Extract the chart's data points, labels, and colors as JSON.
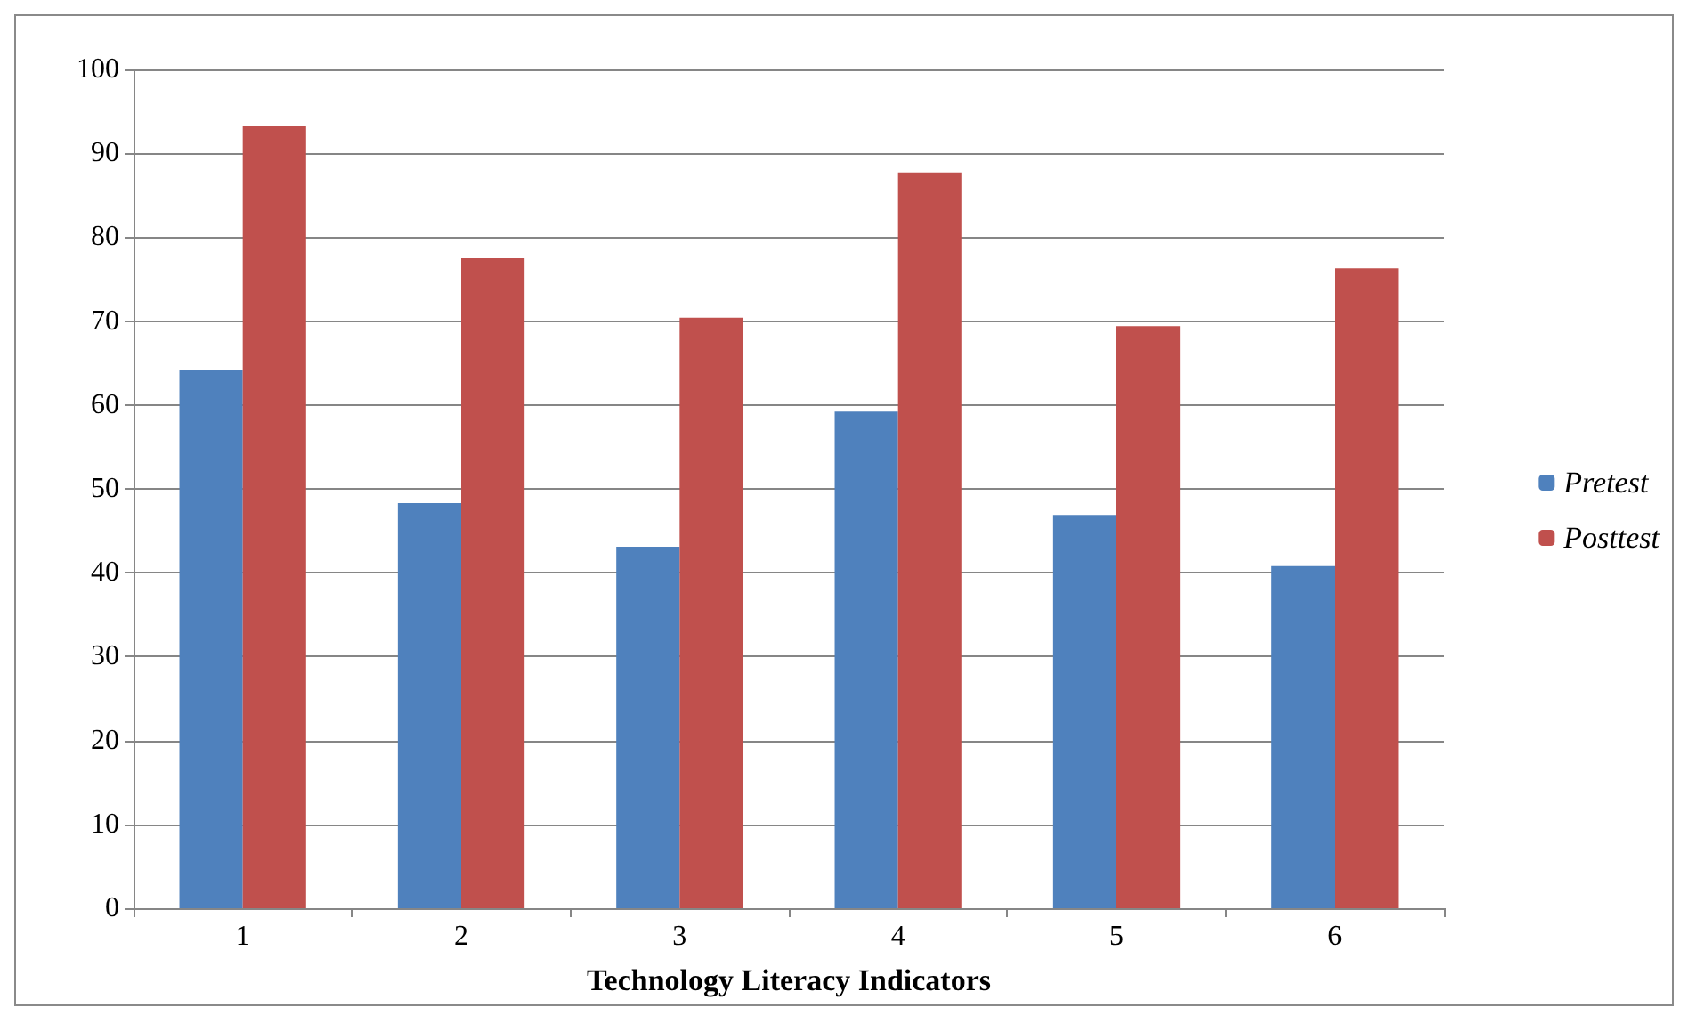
{
  "chart_data": {
    "type": "bar",
    "xlabel": "Technology Literacy Indicators",
    "categories": [
      "1",
      "2",
      "3",
      "4",
      "5",
      "6"
    ],
    "series": [
      {
        "name": "Pretest",
        "color": "#4f81bd",
        "values": [
          64.2,
          48.3,
          43.1,
          59.2,
          46.9,
          40.8
        ]
      },
      {
        "name": "Posttest",
        "color": "#c0504d",
        "values": [
          93.3,
          77.5,
          70.4,
          87.7,
          69.4,
          76.3
        ]
      }
    ],
    "ylim": [
      0,
      100
    ],
    "yticks": [
      0,
      10,
      20,
      30,
      40,
      50,
      60,
      70,
      80,
      90,
      100
    ],
    "grid": "y",
    "legend": "right"
  }
}
